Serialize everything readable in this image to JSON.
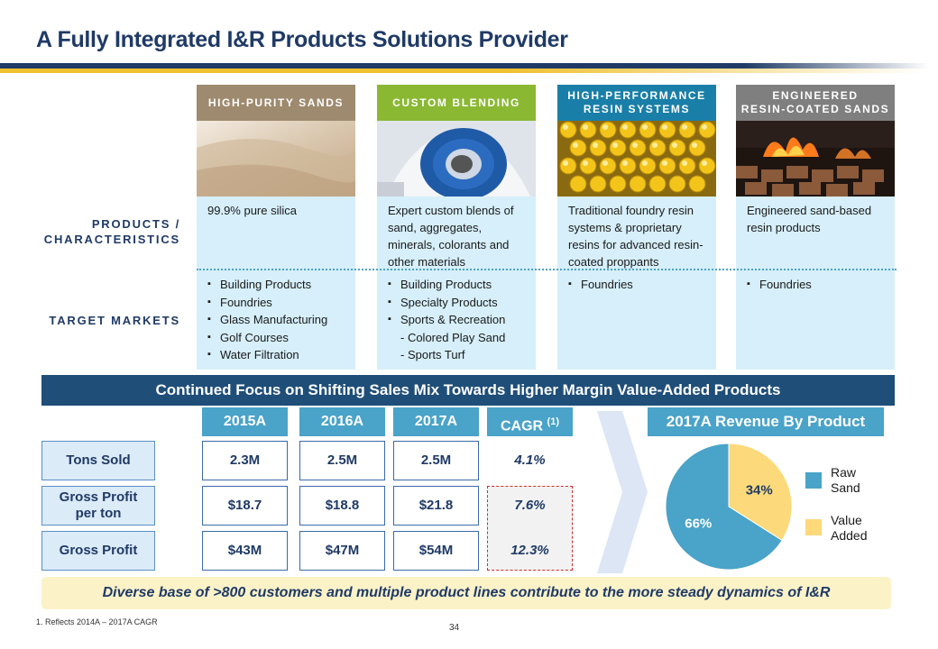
{
  "title": "A Fully Integrated I&R Products Solutions Provider",
  "colors": {
    "navy": "#1f3a66",
    "gold": "#f0c030",
    "light_blue": "#d6effa",
    "teal": "#4aa3c8",
    "yellow": "#fcd97a",
    "banner": "#1f4e79"
  },
  "row_labels": {
    "products_line1": "PRODUCTS /",
    "products_line2": "CHARACTERISTICS",
    "target_markets": "TARGET MARKETS"
  },
  "columns": [
    {
      "header_line1": "HIGH-PURITY SANDS",
      "header_line2": "",
      "header_color": "#9e8a6e",
      "image": "sand-image",
      "characteristic": "99.9% pure silica",
      "markets": [
        "Building Products",
        "Foundries",
        "Glass Manufacturing",
        "Golf Courses",
        "Water Filtration"
      ]
    },
    {
      "header_line1": "CUSTOM BLENDING",
      "header_line2": "",
      "header_color": "#8ab833",
      "image": "blend-bag-image",
      "characteristic": "Expert custom blends of sand, aggregates, minerals, colorants and other materials",
      "markets": [
        "Building Products",
        "Specialty Products",
        "Sports & Recreation"
      ],
      "sub_markets": [
        "- Colored Play Sand",
        "- Sports Turf"
      ]
    },
    {
      "header_line1": "HIGH-PERFORMANCE",
      "header_line2": "RESIN SYSTEMS",
      "header_color": "#1a7fa8",
      "image": "resin-beads-image",
      "characteristic": "Traditional foundry resin systems & proprietary resins for advanced resin-coated proppants",
      "markets": [
        "Foundries"
      ]
    },
    {
      "header_line1": "ENGINEERED",
      "header_line2": "RESIN-COATED SANDS",
      "header_color": "#7f7f7f",
      "image": "foundry-fire-image",
      "characteristic": "Engineered sand-based resin products",
      "markets": [
        "Foundries"
      ]
    }
  ],
  "banner": "Continued Focus on Shifting Sales Mix Towards Higher Margin Value-Added Products",
  "table": {
    "headers": [
      "2015A",
      "2016A",
      "2017A",
      "CAGR"
    ],
    "cagr_footnote": "(1)",
    "rows": [
      {
        "label_line1": "Tons Sold",
        "label_line2": "",
        "values": [
          "2.3M",
          "2.5M",
          "2.5M"
        ],
        "cagr": "4.1%"
      },
      {
        "label_line1": "Gross Profit",
        "label_line2": "per ton",
        "values": [
          "$18.7",
          "$18.8",
          "$21.8"
        ],
        "cagr": "7.6%"
      },
      {
        "label_line1": "Gross Profit",
        "label_line2": "",
        "values": [
          "$43M",
          "$47M",
          "$54M"
        ],
        "cagr": "12.3%"
      }
    ]
  },
  "revenue": {
    "title": "2017A Revenue By Product",
    "legend": [
      {
        "line1": "Raw",
        "line2": "Sand",
        "color": "#4aa3c8"
      },
      {
        "line1": "Value",
        "line2": "Added",
        "color": "#fcd97a"
      }
    ]
  },
  "chart_data": {
    "type": "pie",
    "title": "2017A Revenue By Product",
    "slices": [
      {
        "name": "Raw Sand",
        "value": 66,
        "label": "66%",
        "color": "#4aa3c8"
      },
      {
        "name": "Value Added",
        "value": 34,
        "label": "34%",
        "color": "#fcd97a"
      }
    ],
    "legend_position": "right"
  },
  "bottom_note": "Diverse base of >800 customers and multiple product lines contribute to the more steady dynamics of I&R",
  "footnote": "1.  Reflects 2014A – 2017A CAGR",
  "page_number": "34"
}
